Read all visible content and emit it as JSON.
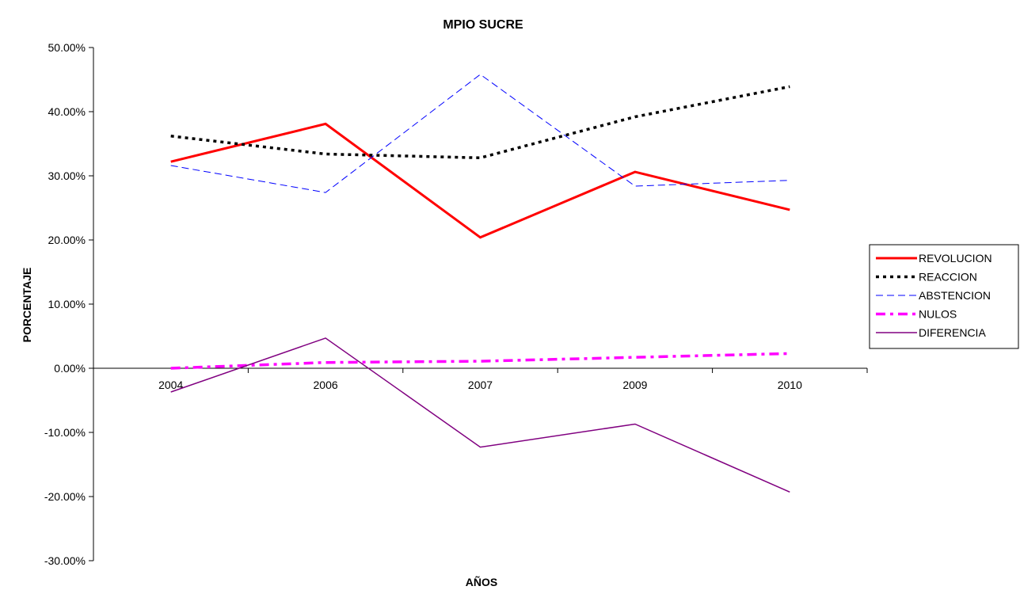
{
  "chart_data": {
    "type": "line",
    "title": "MPIO SUCRE",
    "xlabel": "AÑOS",
    "ylabel": "PORCENTAJE",
    "categories": [
      "2004",
      "2006",
      "2007",
      "2009",
      "2010"
    ],
    "ylim": [
      -30,
      50
    ],
    "ytick_step": 10,
    "ytick_format": "percent_2dp",
    "grid": false,
    "legend_position": "right",
    "series": [
      {
        "name": "REVOLUCION",
        "values": [
          32.2,
          38.1,
          20.4,
          30.6,
          24.7
        ],
        "color": "#ff0000",
        "style": "solid-thick"
      },
      {
        "name": "REACCION",
        "values": [
          36.2,
          33.4,
          32.8,
          39.2,
          43.9
        ],
        "color": "#000000",
        "style": "dotted-thick"
      },
      {
        "name": "ABSTENCION",
        "values": [
          31.6,
          27.4,
          45.8,
          28.4,
          29.3
        ],
        "color": "#0000ff",
        "style": "dashed-thin"
      },
      {
        "name": "NULOS",
        "values": [
          0.0,
          0.9,
          1.1,
          1.7,
          2.3
        ],
        "color": "#ff00ff",
        "style": "dashdot-thick"
      },
      {
        "name": "DIFERENCIA",
        "values": [
          -3.7,
          4.7,
          -12.3,
          -8.7,
          -19.3
        ],
        "color": "#800080",
        "style": "solid-thin"
      }
    ]
  }
}
